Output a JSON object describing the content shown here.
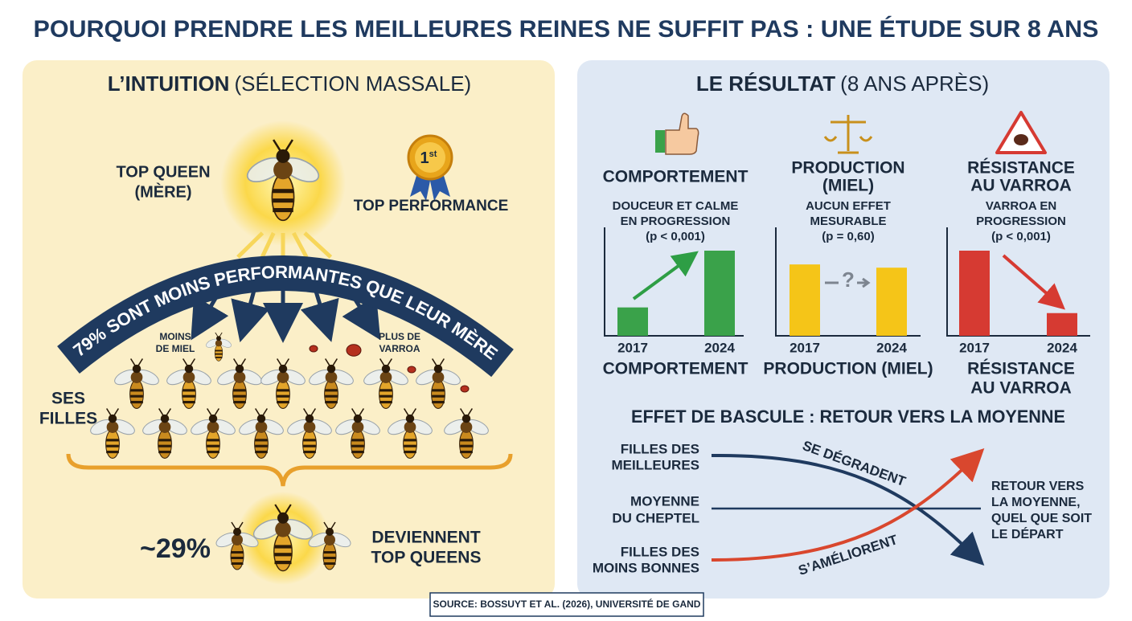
{
  "title": "POURQUOI PRENDRE LES MEILLEURES REINES NE SUFFIT PAS : UNE ÉTUDE SUR 8 ANS",
  "intuition": {
    "heading": "L’INTUITION",
    "subheading": "(SÉLECTION MASSALE)",
    "queen_label": [
      "TOP QUEEN",
      "(MÈRE)"
    ],
    "badge": {
      "number": "1",
      "suffix": "st"
    },
    "performance_label": "TOP PERFORMANCE",
    "banner": "79% SONT MOINS PERFORMANTES QUE LEUR MÈRE",
    "note_left": [
      "MOINS",
      "DE MIEL"
    ],
    "note_right": [
      "PLUS DE",
      "VARROA"
    ],
    "daughters_label": [
      "SES",
      "FILLES"
    ],
    "share": "~29%",
    "share_label": [
      "DEVIENNENT",
      "TOP QUEENS"
    ]
  },
  "result": {
    "heading": "LE RÉSULTAT",
    "subheading": "(8 ANS APRÈS)",
    "panels": [
      {
        "title": [
          "COMPORTEMENT"
        ],
        "description": [
          "DOUCEUR ET CALME",
          "EN PROGRESSION",
          "(p < 0,001)"
        ],
        "years": [
          "2017",
          "2024"
        ],
        "values": [
          35,
          105
        ],
        "color": "#3aa24a",
        "footer": [
          "COMPORTEMENT"
        ]
      },
      {
        "title": [
          "PRODUCTION",
          "(MIEL)"
        ],
        "description": [
          "AUCUN EFFET",
          "MESURABLE",
          "(p = 0,60)"
        ],
        "years": [
          "2017",
          "2024"
        ],
        "values": [
          88,
          84
        ],
        "color": "#f5c518",
        "symbol": "?",
        "footer": [
          "PRODUCTION (MIEL)"
        ]
      },
      {
        "title": [
          "RÉSISTANCE",
          "AU VARROA"
        ],
        "description": [
          "VARROA EN",
          "PROGRESSION",
          "(p < 0,001)"
        ],
        "years": [
          "2017",
          "2024"
        ],
        "values": [
          105,
          28
        ],
        "color": "#d63a32",
        "footer": [
          "RÉSISTANCE",
          "AU VARROA"
        ]
      }
    ],
    "seesaw": {
      "title": "EFFET DE BASCULE : RETOUR VERS LA MOYENNE",
      "top_label": [
        "FILLES DES",
        "MEILLEURES"
      ],
      "mid_label": [
        "MOYENNE",
        "DU CHEPTEL"
      ],
      "bottom_label": [
        "FILLES DES",
        "MOINS BONNES"
      ],
      "down_label": "SE DÉGRADENT",
      "up_label": "S’AMÉLIORENT",
      "conclusion": [
        "RETOUR VERS",
        "LA MOYENNE,",
        "QUEL QUE SOIT",
        "LE DÉPART"
      ]
    }
  },
  "source": "SOURCE: BOSSUYT ET AL. (2026), UNIVERSITÉ DE GAND"
}
